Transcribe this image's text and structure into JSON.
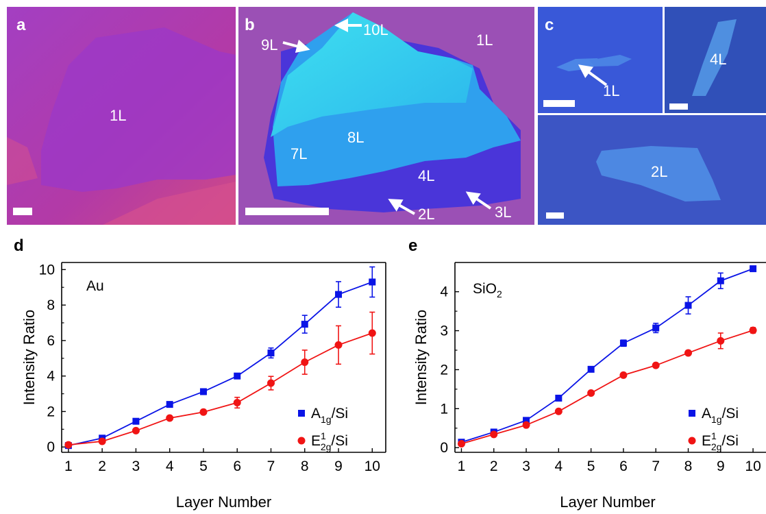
{
  "panels": {
    "a": {
      "letter": "a",
      "labels": [
        "1L"
      ]
    },
    "b": {
      "letter": "b",
      "labels": [
        "10L",
        "9L",
        "1L",
        "8L",
        "7L",
        "4L",
        "2L",
        "3L"
      ]
    },
    "c": {
      "letter": "c",
      "labels": [
        "1L",
        "4L",
        "2L"
      ]
    },
    "d": {
      "letter": "d"
    },
    "e": {
      "letter": "e"
    }
  },
  "colors": {
    "a1g": "#0a14e6",
    "e2g": "#f01414"
  },
  "chart_data": [
    {
      "type": "line",
      "panel": "d",
      "annotation": "Au",
      "xlabel": "Layer Number",
      "ylabel": "Intensity Ratio",
      "xlim": [
        0.8,
        10.4
      ],
      "ylim": [
        -0.3,
        10.4
      ],
      "xticks": [
        1,
        2,
        3,
        4,
        5,
        6,
        7,
        8,
        9,
        10
      ],
      "yticks": [
        0,
        2,
        4,
        6,
        8,
        10
      ],
      "legend_position": "bottom-right",
      "x": [
        1,
        2,
        3,
        4,
        5,
        6,
        7,
        8,
        9,
        10
      ],
      "series": [
        {
          "name": "A1g/Si",
          "legend_main": "A",
          "legend_sub": "1g",
          "legend_sup": "",
          "legend_suffix": "/Si",
          "marker": "square",
          "color": "#0a14e6",
          "values": [
            0.08,
            0.5,
            1.45,
            2.4,
            3.12,
            4.0,
            5.3,
            6.92,
            8.6,
            9.3
          ],
          "errors": [
            0.05,
            0.1,
            0.1,
            0.12,
            0.15,
            0.15,
            0.28,
            0.5,
            0.72,
            0.85
          ]
        },
        {
          "name": "E12g/Si",
          "legend_main": "E",
          "legend_sub": "2g",
          "legend_sup": "1",
          "legend_suffix": "/Si",
          "marker": "circle",
          "color": "#f01414",
          "values": [
            0.12,
            0.32,
            0.92,
            1.63,
            1.97,
            2.5,
            3.6,
            4.78,
            5.75,
            6.42
          ],
          "errors": [
            0.05,
            0.08,
            0.1,
            0.1,
            0.1,
            0.3,
            0.38,
            0.68,
            1.08,
            1.18
          ]
        }
      ]
    },
    {
      "type": "line",
      "panel": "e",
      "annotation": "SiO",
      "annotation_sub": "2",
      "xlabel": "Layer Number",
      "ylabel": "Intensity Ratio",
      "xlim": [
        0.8,
        10.4
      ],
      "ylim": [
        -0.12,
        4.75
      ],
      "xticks": [
        1,
        2,
        3,
        4,
        5,
        6,
        7,
        8,
        9,
        10
      ],
      "yticks": [
        0,
        1,
        2,
        3,
        4
      ],
      "legend_position": "bottom-right",
      "x": [
        1,
        2,
        3,
        4,
        5,
        6,
        7,
        8,
        9,
        10
      ],
      "series": [
        {
          "name": "A1g/Si",
          "legend_main": "A",
          "legend_sub": "1g",
          "legend_sup": "",
          "legend_suffix": "/Si",
          "marker": "square",
          "color": "#0a14e6",
          "values": [
            0.14,
            0.4,
            0.7,
            1.27,
            2.01,
            2.68,
            3.07,
            3.65,
            4.28,
            4.59
          ],
          "errors": [
            0.03,
            0.03,
            0.04,
            0.05,
            0.05,
            0.08,
            0.12,
            0.22,
            0.2,
            0.05
          ]
        },
        {
          "name": "E12g/Si",
          "legend_main": "E",
          "legend_sub": "2g",
          "legend_sup": "1",
          "legend_suffix": "/Si",
          "marker": "circle",
          "color": "#f01414",
          "values": [
            0.1,
            0.34,
            0.58,
            0.93,
            1.4,
            1.86,
            2.11,
            2.43,
            2.74,
            3.01
          ],
          "errors": [
            0.03,
            0.03,
            0.04,
            0.04,
            0.04,
            0.05,
            0.05,
            0.06,
            0.2,
            0.07
          ]
        }
      ]
    }
  ]
}
